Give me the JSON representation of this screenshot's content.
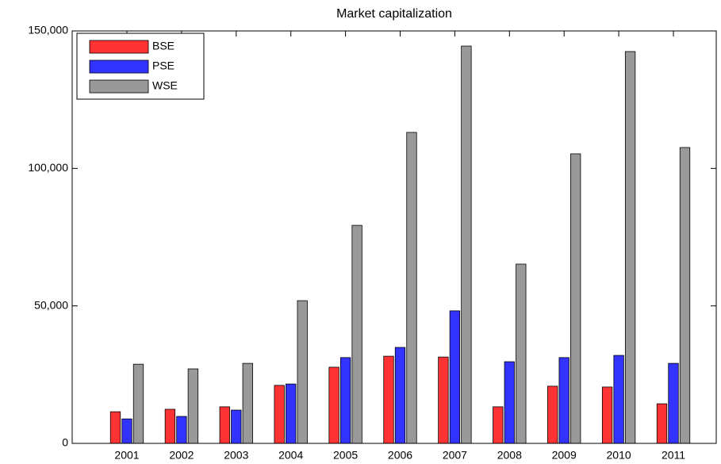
{
  "chart_data": {
    "type": "bar",
    "title": "Market capitalization",
    "categories": [
      "2001",
      "2002",
      "2003",
      "2004",
      "2005",
      "2006",
      "2007",
      "2008",
      "2009",
      "2010",
      "2011"
    ],
    "series": [
      {
        "name": "BSE",
        "color": "#ff3333",
        "values": [
          11500,
          12400,
          13300,
          21100,
          27700,
          31700,
          31400,
          13300,
          20800,
          20500,
          14400
        ]
      },
      {
        "name": "PSE",
        "color": "#3333ff",
        "values": [
          8900,
          9800,
          12100,
          21600,
          31200,
          34900,
          48200,
          29700,
          31200,
          32000,
          29100
        ]
      },
      {
        "name": "WSE",
        "color": "#999999",
        "values": [
          28800,
          27100,
          29100,
          51900,
          79300,
          113100,
          144500,
          65200,
          105300,
          142500,
          107600
        ]
      }
    ],
    "ylim": [
      0,
      150000
    ],
    "yticks": [
      0,
      {
        "value": 50000,
        "label": "50,000"
      },
      {
        "value": 100000,
        "label": "100,000"
      },
      {
        "value": 150000,
        "label": "150,000"
      }
    ],
    "legend": "upper-left"
  }
}
